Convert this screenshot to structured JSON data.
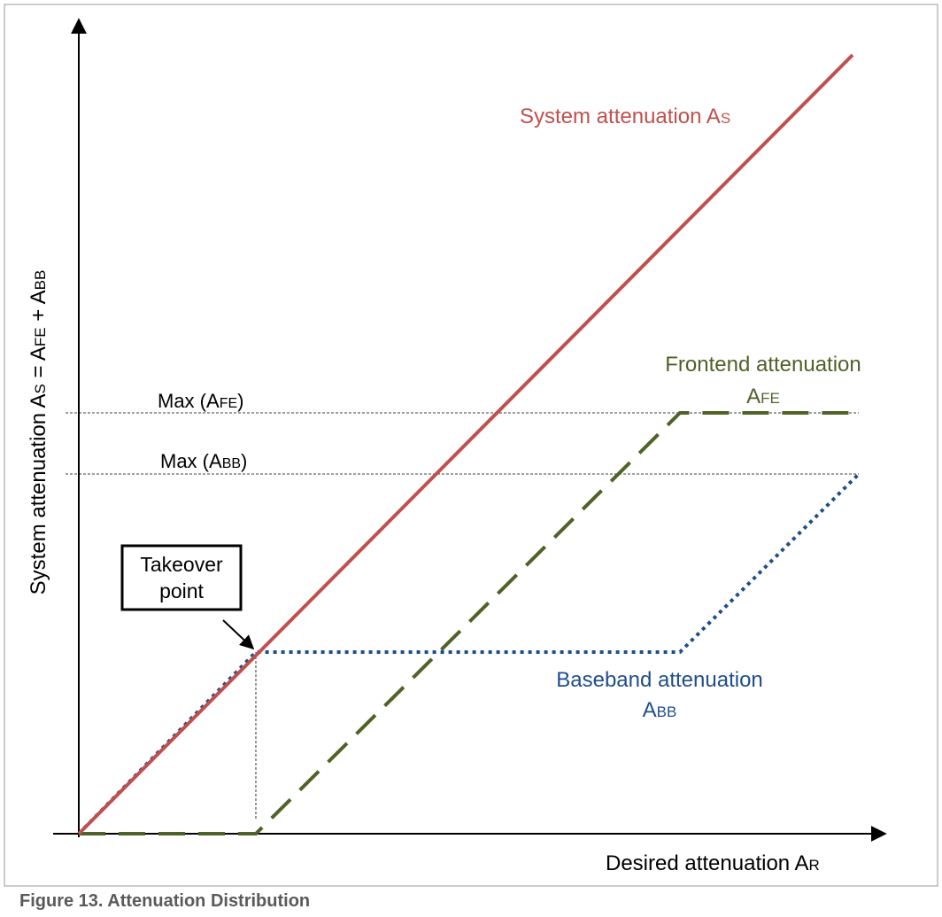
{
  "colors": {
    "system": "#c0504d",
    "frontend": "#4f6228",
    "baseband": "#1f4e8c",
    "axis": "#000000",
    "guide": "#000000",
    "caption": "#5a5a5a"
  },
  "axes": {
    "y_label": {
      "main": "System attenuation A",
      "sub1": "S",
      "eq": " = A",
      "sub2": "FE",
      "plus": " + A",
      "sub3": "BB"
    },
    "x_label": {
      "main": "Desired attenuation A",
      "sub": "R"
    }
  },
  "labels": {
    "system": {
      "main": "System attenuation A",
      "sub": "S"
    },
    "frontend": {
      "line1": "Frontend attenuation",
      "line2_main": "A",
      "line2_sub": "FE"
    },
    "baseband": {
      "line1": "Baseband attenuation",
      "line2_main": "A",
      "line2_sub": "BB"
    },
    "max_fe": {
      "pre": "Max (A",
      "sub": "FE",
      "post": ")"
    },
    "max_bb": {
      "pre": "Max (A",
      "sub": "BB",
      "post": ")"
    },
    "takeover": {
      "line1": "Takeover",
      "line2": "point"
    }
  },
  "caption": "Figure 13.  Attenuation Distribution"
}
